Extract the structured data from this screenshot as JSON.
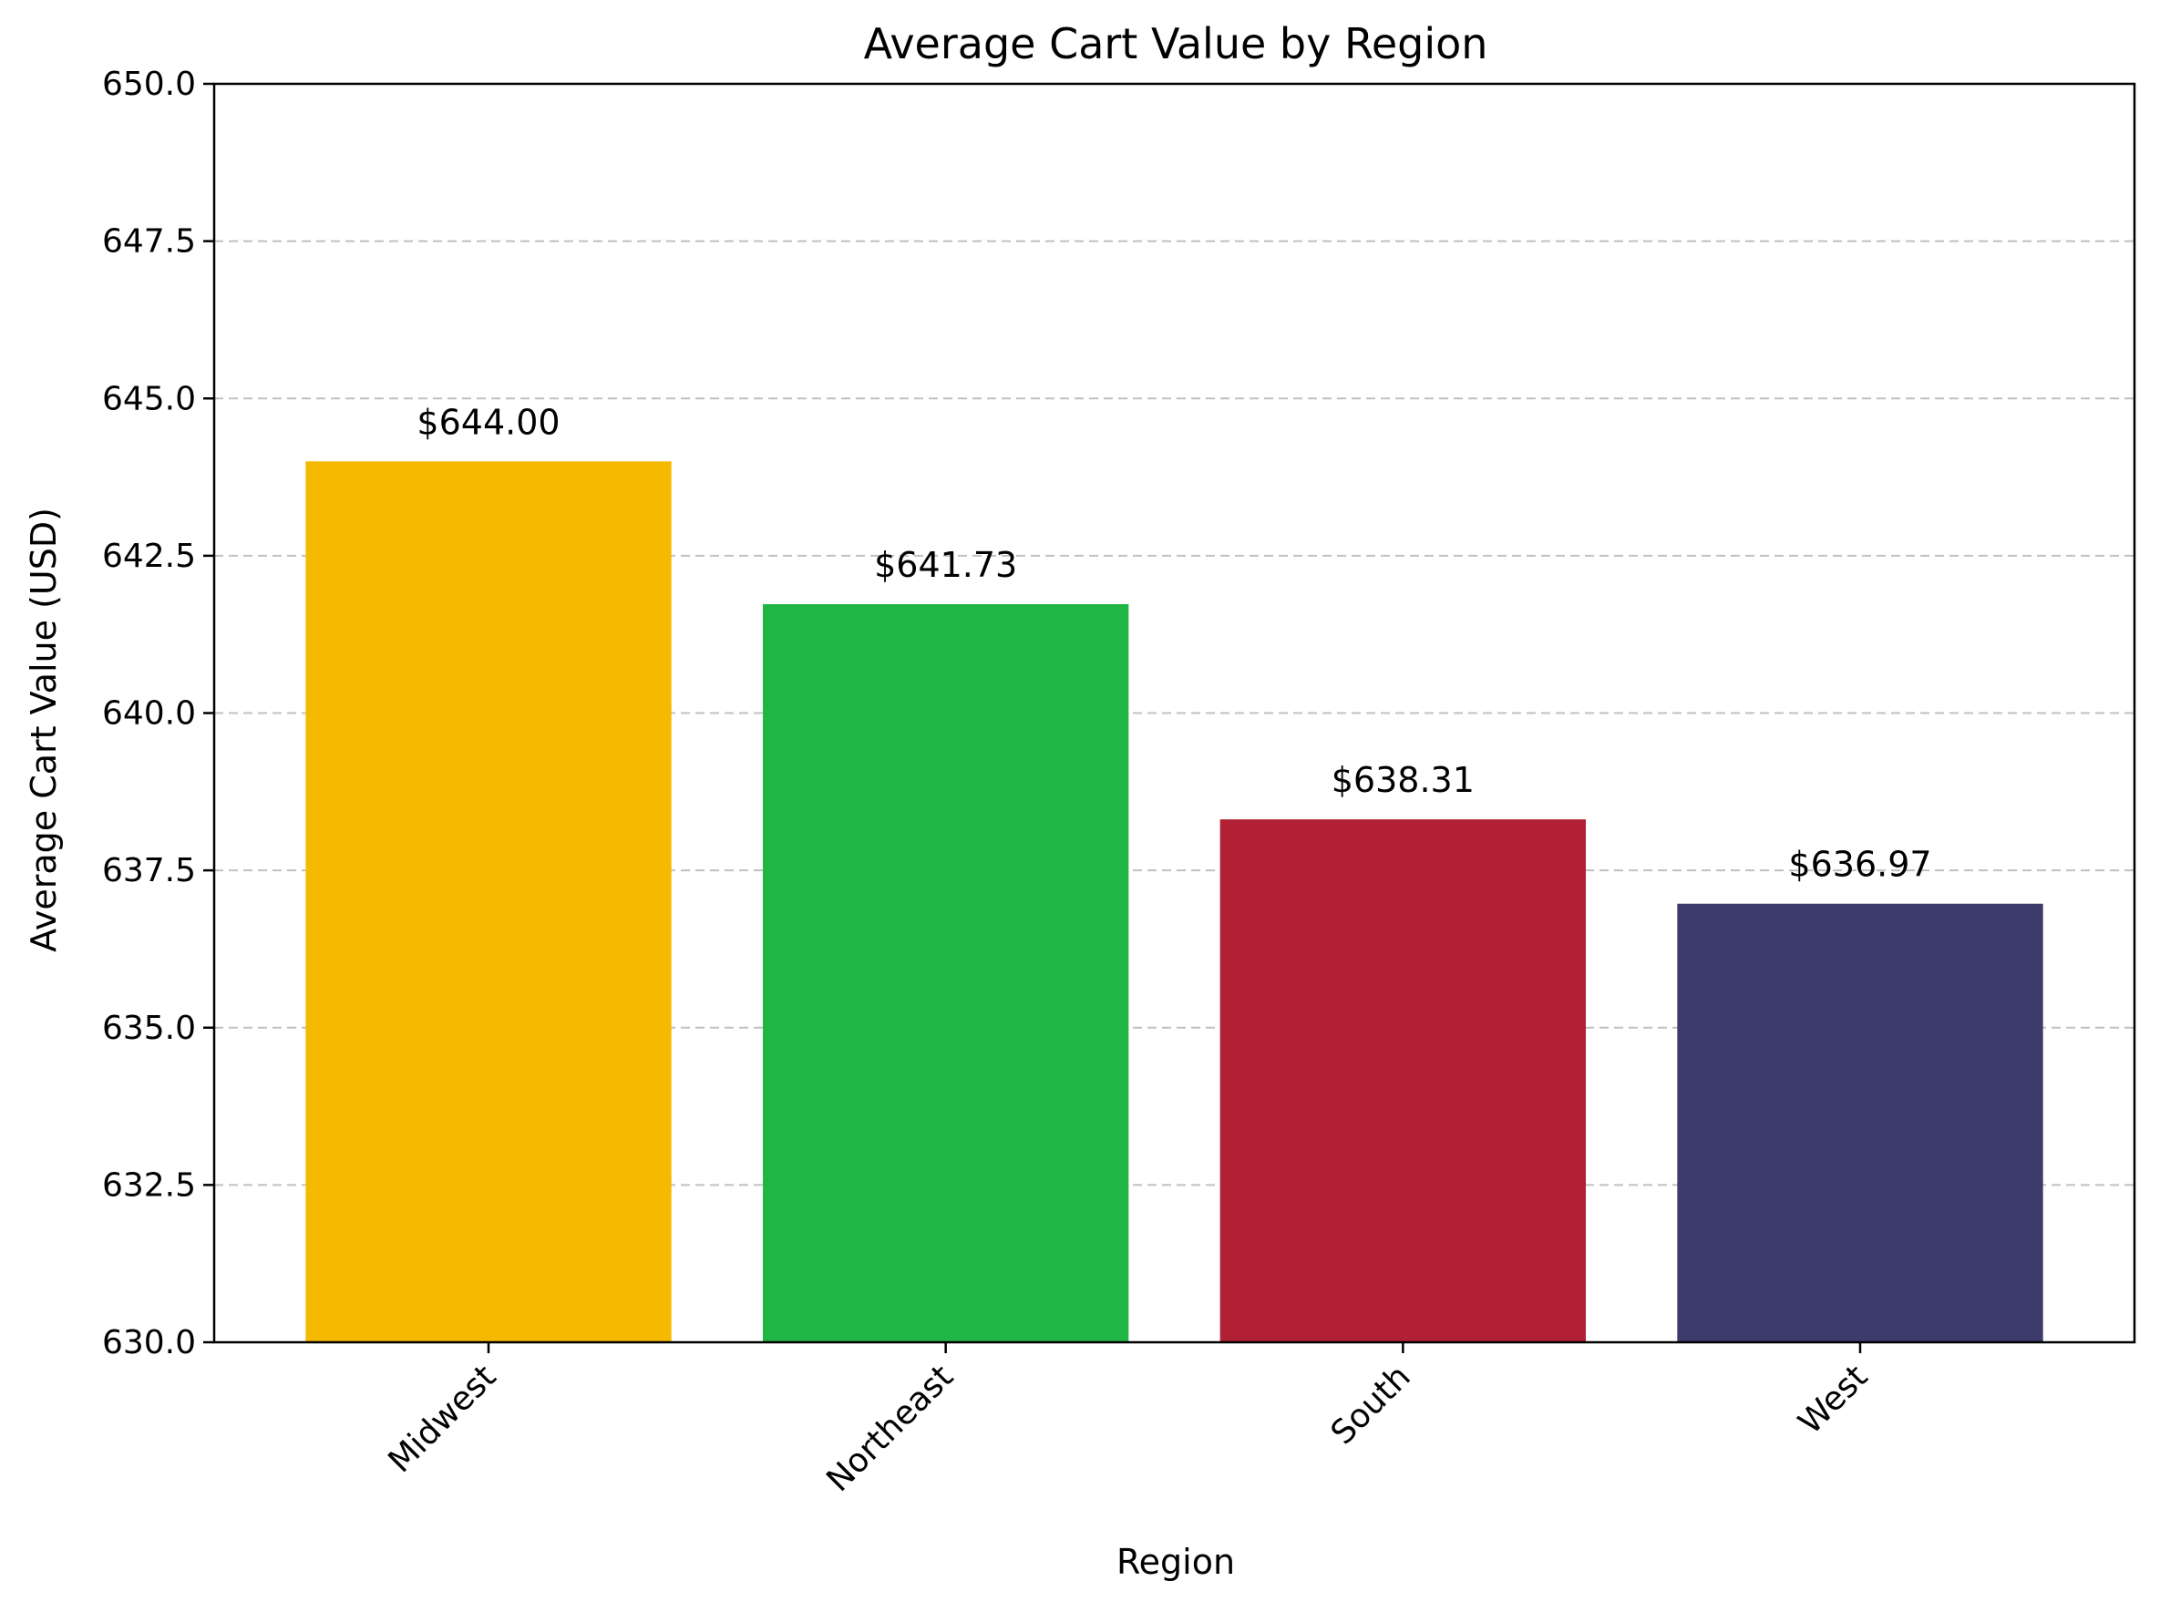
{
  "chart_data": {
    "type": "bar",
    "title": "Average Cart Value by Region",
    "xlabel": "Region",
    "ylabel": "Average Cart Value (USD)",
    "categories": [
      "Midwest",
      "Northeast",
      "South",
      "West"
    ],
    "values": [
      644.0,
      641.73,
      638.31,
      636.97
    ],
    "data_labels": [
      "$644.00",
      "$641.73",
      "$638.31",
      "$636.97"
    ],
    "colors": [
      "#f5ba00",
      "#20b645",
      "#b12034",
      "#3c3b6b"
    ],
    "ylim": [
      630.0,
      650.0
    ],
    "yticks": [
      630.0,
      632.5,
      635.0,
      637.5,
      640.0,
      642.5,
      645.0,
      647.5,
      650.0
    ],
    "ytick_labels": [
      "630.0",
      "632.5",
      "635.0",
      "637.5",
      "640.0",
      "642.5",
      "645.0",
      "647.5",
      "650.0"
    ],
    "grid": "y-dashed",
    "xtick_rotation": "45"
  }
}
